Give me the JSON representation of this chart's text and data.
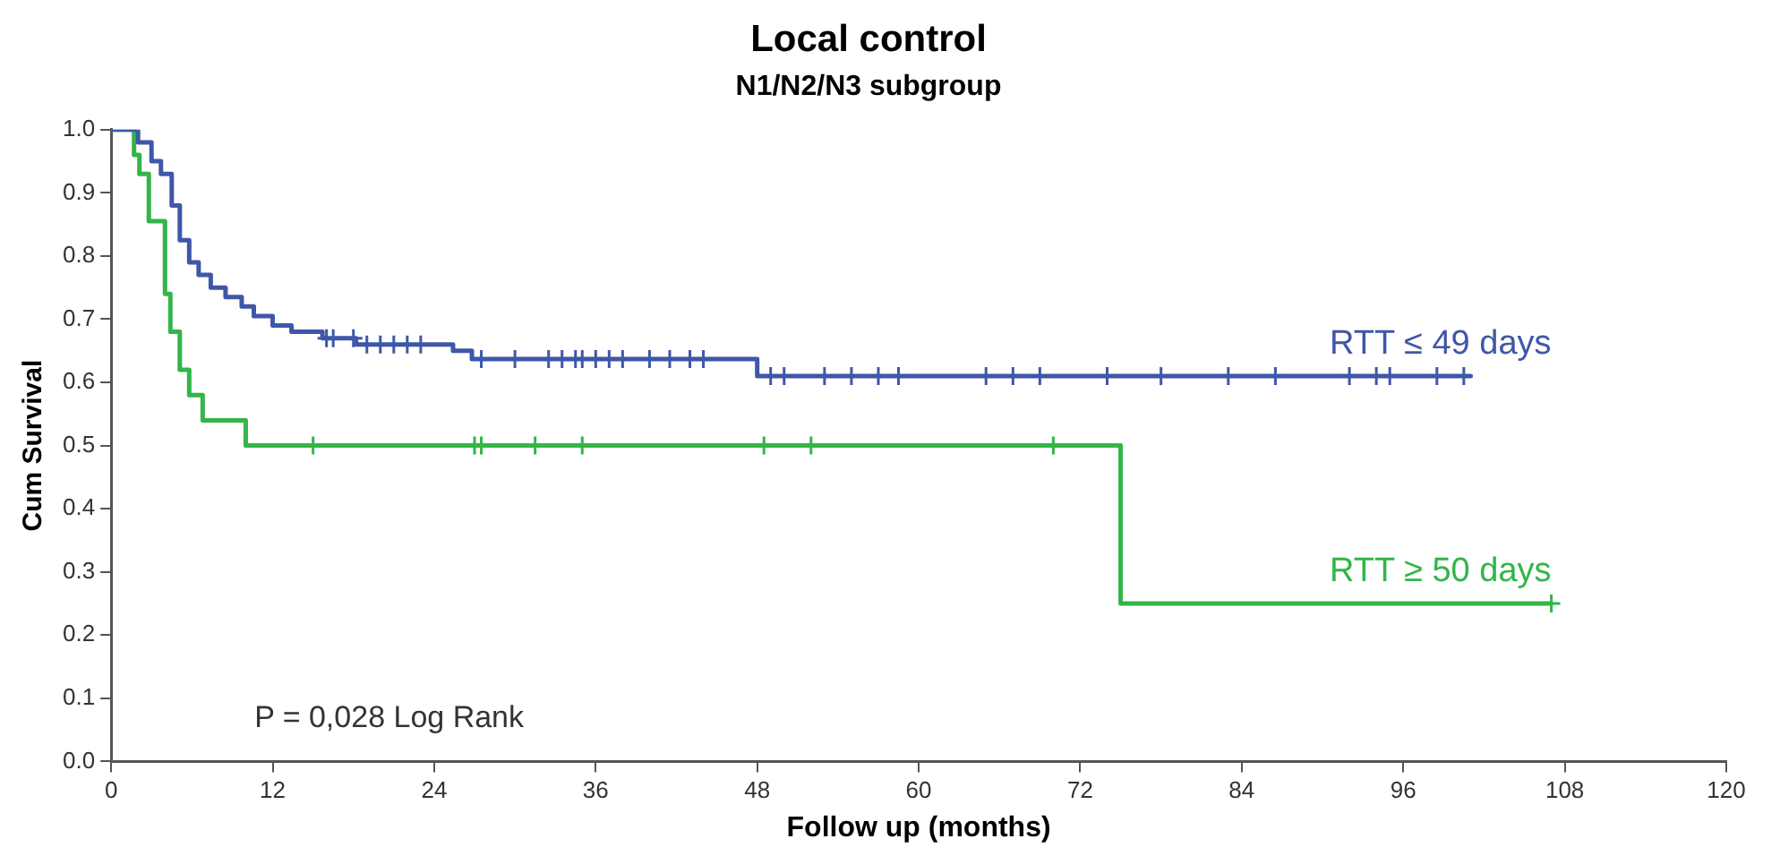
{
  "chart_data": {
    "type": "step",
    "title": "Local control",
    "subtitle": "N1/N2/N3 subgroup",
    "xlabel": "Follow up (months)",
    "ylabel": "Cum Survival",
    "xlim": [
      0,
      120
    ],
    "xticks": [
      0,
      12,
      24,
      36,
      48,
      60,
      72,
      84,
      96,
      108,
      120
    ],
    "ylim": [
      0,
      1
    ],
    "yticks": [
      {
        "value": 0,
        "label": "0.0"
      },
      0.1,
      0.2,
      0.3,
      0.4,
      0.5,
      0.6,
      0.7,
      0.8,
      0.9,
      {
        "value": 1,
        "label": "1.0"
      }
    ],
    "grid": false,
    "legend": false,
    "marker": "none",
    "line_style": "solid",
    "annotations": [
      "P = 0,028 Log Rank"
    ],
    "series": [
      {
        "name": "RTT ≤ 49 days",
        "color": "#3f57a8",
        "x": [
          0,
          2,
          3,
          3.7,
          4.5,
          5.1,
          5.8,
          6.5,
          7.4,
          8.5,
          9.7,
          10.6,
          12,
          13.4,
          15.7,
          18.2,
          25.4,
          26.8,
          48,
          101
        ],
        "values": [
          1,
          0.98,
          0.95,
          0.93,
          0.88,
          0.825,
          0.79,
          0.77,
          0.75,
          0.735,
          0.72,
          0.705,
          0.69,
          0.68,
          0.67,
          0.66,
          0.65,
          0.637,
          0.61,
          0.61
        ]
      },
      {
        "name": "RTT ≥ 50 days",
        "color": "#33b548",
        "x": [
          0,
          1.7,
          2.1,
          2.8,
          4,
          4.4,
          5.1,
          5.8,
          6.8,
          10,
          75,
          107
        ],
        "values": [
          1,
          0.96,
          0.93,
          0.855,
          0.74,
          0.68,
          0.62,
          0.58,
          0.54,
          0.5,
          0.25,
          0.25
        ]
      },
      {
        "color": "#3f57a8",
        "type": "scatter",
        "marker": "cross",
        "x": [
          16,
          16.5,
          18,
          19,
          20,
          21,
          22,
          23,
          27.5,
          30,
          32.5,
          33.5,
          34.5,
          35,
          36,
          37,
          38,
          40,
          41.5,
          43,
          44,
          49,
          50,
          53,
          55,
          57,
          58.5,
          65,
          67,
          69,
          74,
          78,
          83,
          86.5,
          92,
          94,
          95,
          98.5,
          100.5
        ],
        "values": [
          0.67,
          0.67,
          0.67,
          0.66,
          0.66,
          0.66,
          0.66,
          0.66,
          0.637,
          0.637,
          0.637,
          0.637,
          0.637,
          0.637,
          0.637,
          0.637,
          0.637,
          0.637,
          0.637,
          0.637,
          0.637,
          0.61,
          0.61,
          0.61,
          0.61,
          0.61,
          0.61,
          0.61,
          0.61,
          0.61,
          0.61,
          0.61,
          0.61,
          0.61,
          0.61,
          0.61,
          0.61,
          0.61,
          0.61
        ]
      },
      {
        "color": "#33b548",
        "type": "scatter",
        "marker": "cross",
        "x": [
          15,
          27,
          27.5,
          31.5,
          35,
          48.5,
          52,
          70,
          107
        ],
        "values": [
          0.5,
          0.5,
          0.5,
          0.5,
          0.5,
          0.5,
          0.5,
          0.5,
          0.25
        ]
      }
    ]
  }
}
